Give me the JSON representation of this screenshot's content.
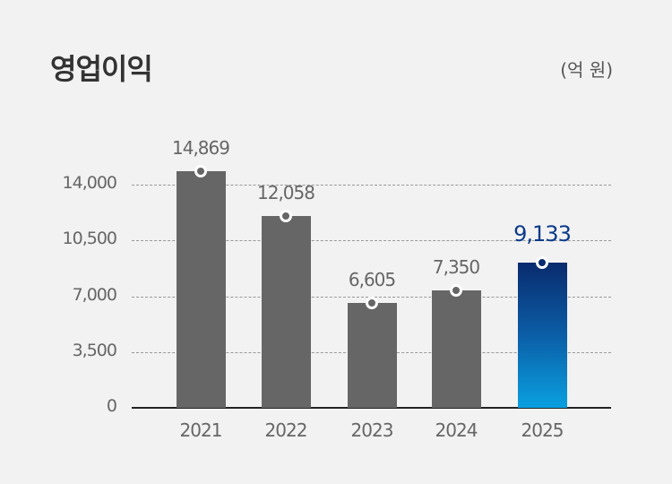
{
  "header": {
    "title": "영업이익",
    "unit": "(억 원)"
  },
  "chart_data": {
    "type": "bar",
    "title": "영업이익",
    "unit_label": "(억 원)",
    "categories": [
      "2021",
      "2022",
      "2023",
      "2024",
      "2025"
    ],
    "values": [
      14869,
      12058,
      6605,
      7350,
      9133
    ],
    "value_labels": [
      "14,869",
      "12,058",
      "6,605",
      "7,350",
      "9,133"
    ],
    "highlight_index": 4,
    "yticks": [
      0,
      3500,
      7000,
      10500,
      14000
    ],
    "ytick_labels": [
      "0",
      "3,500",
      "7,000",
      "10,500",
      "14,000"
    ],
    "ylim": [
      0,
      14000
    ],
    "grid": true,
    "colors": {
      "bar": "#666666",
      "highlight_top": "#0a2b6e",
      "highlight_bottom": "#0aa0e0",
      "highlight_label": "#0a3a8a"
    },
    "xlabel": "",
    "ylabel": ""
  }
}
